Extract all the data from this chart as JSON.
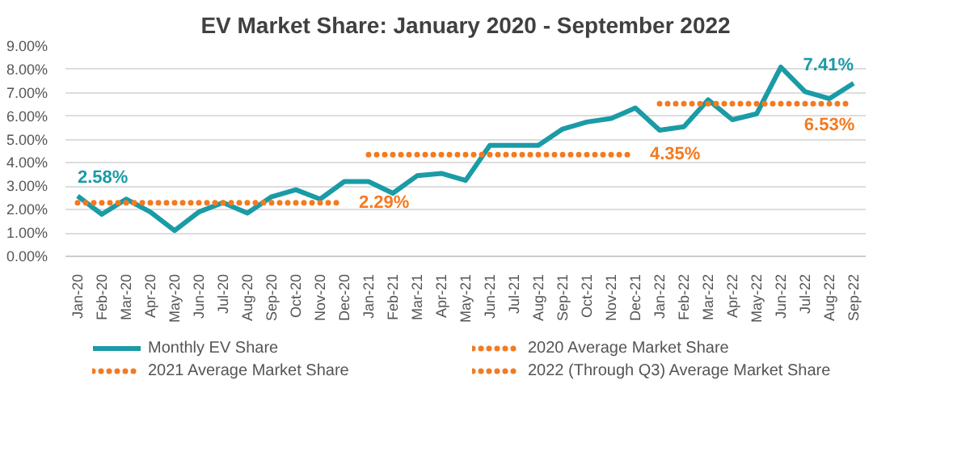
{
  "chart_data": {
    "type": "line",
    "title": "EV Market Share: January 2020 - September 2022",
    "categories": [
      "Jan-20",
      "Feb-20",
      "Mar-20",
      "Apr-20",
      "May-20",
      "Jun-20",
      "Jul-20",
      "Aug-20",
      "Sep-20",
      "Oct-20",
      "Nov-20",
      "Dec-20",
      "Jan-21",
      "Feb-21",
      "Mar-21",
      "Apr-21",
      "May-21",
      "Jun-21",
      "Jul-21",
      "Aug-21",
      "Sep-21",
      "Oct-21",
      "Nov-21",
      "Dec-21",
      "Jan-22",
      "Feb-22",
      "Mar-22",
      "Apr-22",
      "May-22",
      "Jun-22",
      "Jul-22",
      "Aug-22",
      "Sep-22"
    ],
    "series": [
      {
        "name": "Monthly EV Share",
        "color": "#1a9ba6",
        "line_style": "solid",
        "values": [
          2.58,
          1.8,
          2.45,
          1.9,
          1.1,
          1.9,
          2.3,
          1.85,
          2.55,
          2.85,
          2.45,
          3.2,
          3.2,
          2.7,
          3.45,
          3.55,
          3.25,
          4.75,
          4.75,
          4.75,
          5.45,
          5.75,
          5.9,
          6.35,
          5.4,
          5.55,
          6.7,
          5.85,
          6.1,
          8.1,
          7.05,
          6.75,
          7.41
        ],
        "value_labels": [
          "2.58%",
          null,
          null,
          null,
          null,
          null,
          null,
          null,
          null,
          null,
          null,
          null,
          null,
          null,
          null,
          null,
          null,
          null,
          null,
          null,
          null,
          null,
          null,
          null,
          null,
          null,
          null,
          null,
          null,
          null,
          null,
          null,
          "7.41%"
        ]
      },
      {
        "name": "2020 Average Market Share",
        "color": "#f47a20",
        "line_style": "dotted",
        "values": [
          2.29,
          2.29,
          2.29,
          2.29,
          2.29,
          2.29,
          2.29,
          2.29,
          2.29,
          2.29,
          2.29,
          2.29,
          null,
          null,
          null,
          null,
          null,
          null,
          null,
          null,
          null,
          null,
          null,
          null,
          null,
          null,
          null,
          null,
          null,
          null,
          null,
          null,
          null
        ],
        "value_labels": [
          null,
          null,
          null,
          null,
          null,
          null,
          null,
          null,
          null,
          null,
          null,
          "2.29%",
          null,
          null,
          null,
          null,
          null,
          null,
          null,
          null,
          null,
          null,
          null,
          null,
          null,
          null,
          null,
          null,
          null,
          null,
          null,
          null,
          null
        ]
      },
      {
        "name": "2021 Average Market Share",
        "color": "#f47a20",
        "line_style": "dotted",
        "values": [
          null,
          null,
          null,
          null,
          null,
          null,
          null,
          null,
          null,
          null,
          null,
          null,
          4.35,
          4.35,
          4.35,
          4.35,
          4.35,
          4.35,
          4.35,
          4.35,
          4.35,
          4.35,
          4.35,
          4.35,
          null,
          null,
          null,
          null,
          null,
          null,
          null,
          null,
          null
        ],
        "value_labels": [
          null,
          null,
          null,
          null,
          null,
          null,
          null,
          null,
          null,
          null,
          null,
          null,
          null,
          null,
          null,
          null,
          null,
          null,
          null,
          null,
          null,
          null,
          null,
          "4.35%",
          null,
          null,
          null,
          null,
          null,
          null,
          null,
          null,
          null
        ]
      },
      {
        "name": "2022 (Through Q3) Average Market Share",
        "color": "#f47a20",
        "line_style": "dotted",
        "values": [
          null,
          null,
          null,
          null,
          null,
          null,
          null,
          null,
          null,
          null,
          null,
          null,
          null,
          null,
          null,
          null,
          null,
          null,
          null,
          null,
          null,
          null,
          null,
          null,
          6.53,
          6.53,
          6.53,
          6.53,
          6.53,
          6.53,
          6.53,
          6.53,
          6.53
        ],
        "value_labels": [
          null,
          null,
          null,
          null,
          null,
          null,
          null,
          null,
          null,
          null,
          null,
          null,
          null,
          null,
          null,
          null,
          null,
          null,
          null,
          null,
          null,
          null,
          null,
          null,
          null,
          null,
          null,
          null,
          null,
          null,
          null,
          null,
          "6.53%"
        ]
      }
    ],
    "ylim": [
      0,
      9
    ],
    "yticks": [
      {
        "value": 0,
        "label": "0.00%"
      },
      {
        "value": 1,
        "label": "1.00%"
      },
      {
        "value": 2,
        "label": "2.00%"
      },
      {
        "value": 3,
        "label": "3.00%"
      },
      {
        "value": 4,
        "label": "4.00%"
      },
      {
        "value": 5,
        "label": "5.00%"
      },
      {
        "value": 6,
        "label": "6.00%"
      },
      {
        "value": 7,
        "label": "7.00%"
      },
      {
        "value": 8,
        "label": "8.00%"
      },
      {
        "value": 9,
        "label": "9.00%"
      }
    ],
    "grid": "y",
    "legend": "bottom",
    "marker": "none"
  }
}
